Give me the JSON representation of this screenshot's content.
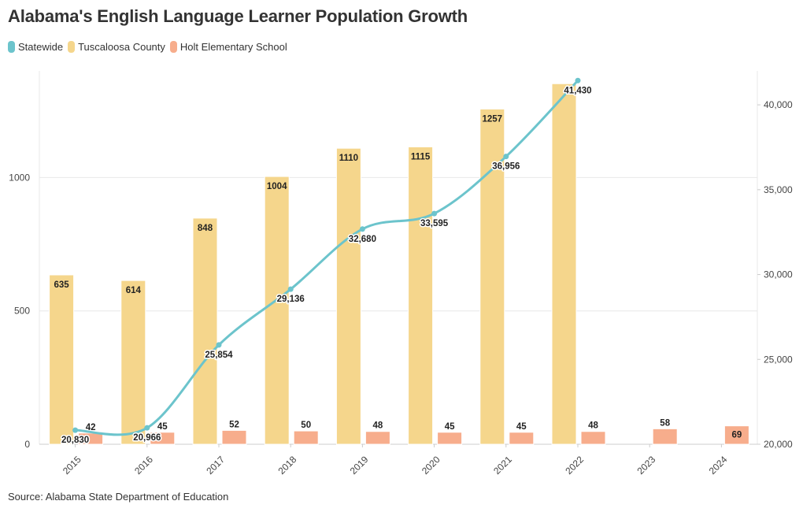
{
  "page": {
    "title": "Alabama's English Language Learner Population Growth",
    "source": "Source: Alabama State Department of Education"
  },
  "colors": {
    "statewide": "#6cc4cc",
    "county": "#f5d68c",
    "school": "#f7ad8c",
    "grid": "#e8e8e8",
    "axis": "#cccccc"
  },
  "chart_data": {
    "type": "bar",
    "title": "Alabama's English Language Learner Population Growth",
    "categories": [
      "2015",
      "2016",
      "2017",
      "2018",
      "2019",
      "2020",
      "2021",
      "2022",
      "2023",
      "2024"
    ],
    "legend_position": "top-left",
    "grid": true,
    "y_left": {
      "range": [
        0,
        1400
      ],
      "ticks": [
        "0",
        "500",
        "1000"
      ]
    },
    "y_right": {
      "range": [
        20000,
        42000
      ],
      "ticks": [
        "20,000",
        "25,000",
        "30,000",
        "35,000",
        "40,000"
      ]
    },
    "series": [
      {
        "name": "Statewide",
        "type": "line",
        "axis": "right",
        "values": [
          20830,
          20966,
          25854,
          29136,
          32680,
          33595,
          36956,
          41430,
          null,
          null
        ],
        "labels": [
          "20,830",
          "20,966",
          "25,854",
          "29,136",
          "32,680",
          "33,595",
          "36,956",
          "41,430",
          "",
          ""
        ]
      },
      {
        "name": "Tuscaloosa County",
        "type": "bar",
        "axis": "left",
        "values": [
          635,
          614,
          848,
          1004,
          1110,
          1115,
          1257,
          1352,
          null,
          null
        ],
        "labels": [
          "635",
          "614",
          "848",
          "1004",
          "1110",
          "1115",
          "1257",
          "",
          "",
          ""
        ]
      },
      {
        "name": "Holt Elementary School",
        "type": "bar",
        "axis": "left",
        "values": [
          42,
          45,
          52,
          50,
          48,
          45,
          45,
          48,
          58,
          69
        ],
        "labels": [
          "42",
          "45",
          "52",
          "50",
          "48",
          "45",
          "45",
          "48",
          "58",
          "69"
        ]
      }
    ]
  }
}
